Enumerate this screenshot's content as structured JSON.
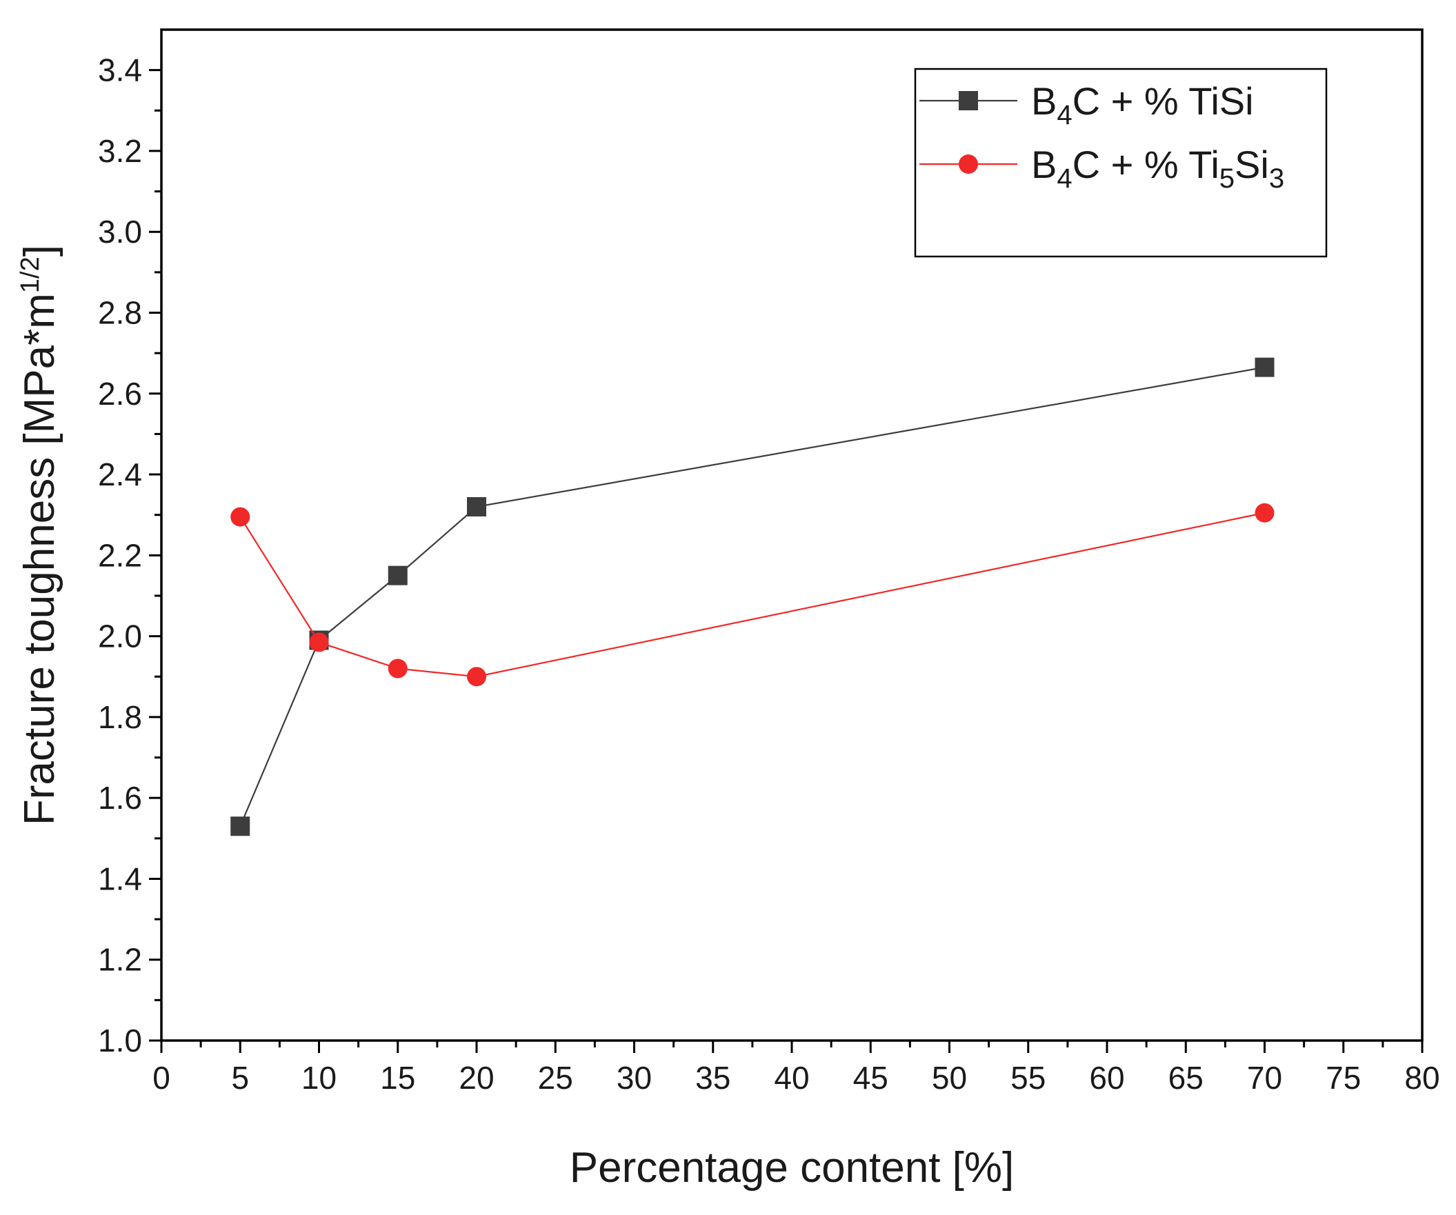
{
  "chart_data": {
    "type": "line",
    "title": "",
    "xlabel": "Percentage content [%]",
    "ylabel": "Fracture toughness [MPa*m",
    "ylabel_superscript": "1/2",
    "ylabel_close": "]",
    "xlim": [
      0,
      80
    ],
    "ylim": [
      1.0,
      3.5
    ],
    "xticks": [
      0,
      5,
      10,
      15,
      20,
      25,
      30,
      35,
      40,
      45,
      50,
      55,
      60,
      65,
      70,
      75,
      80
    ],
    "yticks": [
      1.0,
      1.2,
      1.4,
      1.6,
      1.8,
      2.0,
      2.2,
      2.4,
      2.6,
      2.8,
      3.0,
      3.2,
      3.4
    ],
    "xtick_labels": [
      "0",
      "5",
      "10",
      "15",
      "20",
      "25",
      "30",
      "35",
      "40",
      "45",
      "50",
      "55",
      "60",
      "65",
      "70",
      "75",
      "80"
    ],
    "ytick_labels": [
      "1.0",
      "1.2",
      "1.4",
      "1.6",
      "1.8",
      "2.0",
      "2.2",
      "2.4",
      "2.6",
      "2.8",
      "3.0",
      "3.2",
      "3.4"
    ],
    "grid": false,
    "legend_position": "top-right",
    "series": [
      {
        "name": "B4C + % TiSi",
        "legend_parts": [
          {
            "text": "B",
            "sub": false
          },
          {
            "text": "4",
            "sub": true
          },
          {
            "text": "C + % TiSi",
            "sub": false
          }
        ],
        "color": "#3d3d3d",
        "marker": "square",
        "x": [
          5,
          10,
          15,
          20,
          70
        ],
        "values": [
          1.53,
          1.99,
          2.15,
          2.32,
          2.665
        ]
      },
      {
        "name": "B4C + % Ti5Si3",
        "legend_parts": [
          {
            "text": "B",
            "sub": false
          },
          {
            "text": "4",
            "sub": true
          },
          {
            "text": "C + % Ti",
            "sub": false
          },
          {
            "text": "5",
            "sub": true
          },
          {
            "text": "Si",
            "sub": false
          },
          {
            "text": "3",
            "sub": true
          }
        ],
        "color": "#f02828",
        "marker": "circle",
        "x": [
          5,
          10,
          15,
          20,
          70
        ],
        "values": [
          2.295,
          1.985,
          1.92,
          1.9,
          2.305
        ]
      }
    ]
  }
}
